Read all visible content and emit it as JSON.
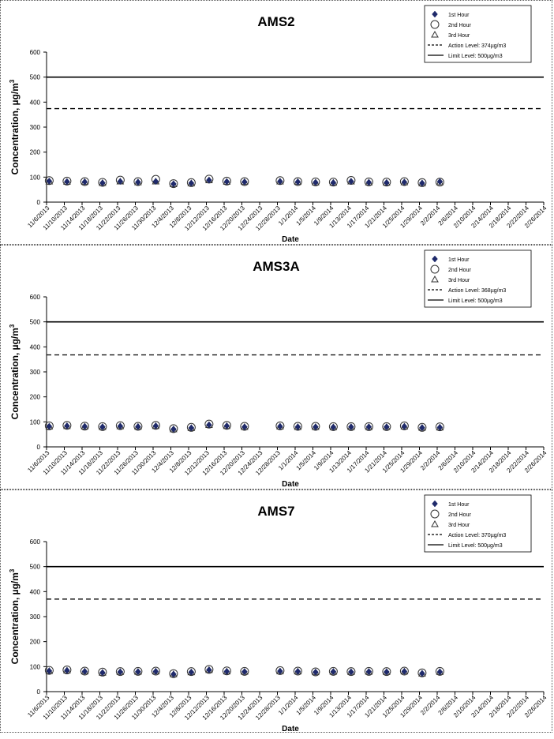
{
  "charts": [
    {
      "type": "scatter",
      "title": "AMS2",
      "ylabel": "Concentration,  µg/m",
      "ylabel_sup": "3",
      "xlabel": "Date",
      "ylim": [
        0,
        600
      ],
      "yticks": [
        0,
        100,
        200,
        300,
        400,
        500,
        600
      ],
      "x": [
        "11/6/2013",
        "11/10/2013",
        "11/14/2013",
        "11/18/2013",
        "11/22/2013",
        "11/26/2013",
        "11/30/2013",
        "12/4/2013",
        "12/8/2013",
        "12/12/2013",
        "12/16/2013",
        "12/20/2013",
        "12/24/2013",
        "12/28/2013",
        "1/1/2014",
        "1/5/2014",
        "1/9/2014",
        "1/13/2014",
        "1/17/2014",
        "1/21/2014",
        "1/25/2014",
        "1/29/2014",
        "2/2/2014",
        "2/6/2014",
        "2/10/2014",
        "2/14/2014",
        "2/18/2014",
        "2/22/2014",
        "2/26/2014"
      ],
      "series": [
        {
          "name": "1st Hour",
          "marker": "diamond",
          "values": [
            84,
            82,
            81,
            77,
            83,
            80,
            83,
            73,
            76,
            88,
            82,
            81,
            83,
            81,
            79,
            78,
            83,
            79,
            78,
            80,
            76,
            82
          ]
        },
        {
          "name": "2nd Hour",
          "marker": "circle",
          "values": [
            86,
            84,
            82,
            79,
            88,
            82,
            91,
            74,
            78,
            92,
            84,
            82,
            86,
            82,
            81,
            80,
            87,
            81,
            80,
            82,
            78,
            80
          ]
        },
        {
          "name": "3rd Hour",
          "marker": "triangle",
          "values": [
            82,
            81,
            80,
            76,
            82,
            79,
            82,
            71,
            75,
            87,
            81,
            80,
            82,
            80,
            78,
            77,
            82,
            78,
            77,
            79,
            75,
            79
          ]
        }
      ],
      "lines": [
        {
          "name": "Action Level: 374µg/m3",
          "value": 374,
          "style": "dashed"
        },
        {
          "name": "Limit Level: 500µg/m3",
          "value": 500,
          "style": "solid"
        }
      ],
      "legend": "top-right"
    },
    {
      "type": "scatter",
      "title": "AMS3A",
      "ylabel": "Concentration,  µg/m",
      "ylabel_sup": "3",
      "xlabel": "Date",
      "ylim": [
        0,
        600
      ],
      "yticks": [
        0,
        100,
        200,
        300,
        400,
        500,
        600
      ],
      "x": [
        "11/6/2013",
        "11/10/2013",
        "11/14/2013",
        "11/18/2013",
        "11/22/2013",
        "11/26/2013",
        "11/30/2013",
        "12/4/2013",
        "12/8/2013",
        "12/12/2013",
        "12/16/2013",
        "12/20/2013",
        "12/24/2013",
        "12/28/2013",
        "1/1/2014",
        "1/5/2014",
        "1/9/2014",
        "1/13/2014",
        "1/17/2014",
        "1/21/2014",
        "1/25/2014",
        "1/29/2014",
        "2/2/2014",
        "2/6/2014",
        "2/10/2014",
        "2/14/2014",
        "2/18/2014",
        "2/22/2014",
        "2/26/2014"
      ],
      "series": [
        {
          "name": "1st Hour",
          "marker": "diamond",
          "values": [
            82,
            84,
            82,
            80,
            83,
            81,
            84,
            71,
            76,
            88,
            84,
            80,
            82,
            80,
            80,
            79,
            80,
            80,
            80,
            82,
            77,
            78
          ]
        },
        {
          "name": "2nd Hour",
          "marker": "circle",
          "values": [
            84,
            86,
            83,
            81,
            85,
            82,
            86,
            73,
            78,
            91,
            86,
            82,
            84,
            82,
            82,
            81,
            81,
            81,
            81,
            84,
            78,
            80
          ]
        },
        {
          "name": "3rd Hour",
          "marker": "triangle",
          "values": [
            81,
            83,
            81,
            79,
            82,
            80,
            83,
            70,
            75,
            87,
            83,
            79,
            81,
            79,
            79,
            78,
            79,
            79,
            79,
            81,
            76,
            77
          ]
        }
      ],
      "lines": [
        {
          "name": "Action Level: 368µg/m3",
          "value": 368,
          "style": "dashed"
        },
        {
          "name": "Limit Level: 500µg/m3",
          "value": 500,
          "style": "solid"
        }
      ],
      "legend": "top-right"
    },
    {
      "type": "scatter",
      "title": "AMS7",
      "ylabel": "Concentration,  µg/m",
      "ylabel_sup": "3",
      "xlabel": "Date",
      "ylim": [
        0,
        600
      ],
      "yticks": [
        0,
        100,
        200,
        300,
        400,
        500,
        600
      ],
      "x": [
        "11/6/2013",
        "11/10/2013",
        "11/14/2013",
        "11/18/2013",
        "11/22/2013",
        "11/26/2013",
        "11/30/2013",
        "12/4/2013",
        "12/8/2013",
        "12/12/2013",
        "12/16/2013",
        "12/20/2013",
        "12/24/2013",
        "12/28/2013",
        "1/1/2014",
        "1/5/2014",
        "1/9/2014",
        "1/13/2014",
        "1/17/2014",
        "1/21/2014",
        "1/25/2014",
        "1/29/2014",
        "2/2/2014",
        "2/6/2014",
        "2/10/2014",
        "2/14/2014",
        "2/18/2014",
        "2/22/2014",
        "2/26/2014"
      ],
      "series": [
        {
          "name": "1st Hour",
          "marker": "diamond",
          "values": [
            83,
            85,
            81,
            76,
            79,
            80,
            81,
            70,
            78,
            87,
            81,
            80,
            82,
            81,
            78,
            80,
            79,
            80,
            79,
            81,
            73,
            79
          ]
        },
        {
          "name": "2nd Hour",
          "marker": "circle",
          "values": [
            85,
            87,
            82,
            78,
            80,
            81,
            82,
            72,
            80,
            89,
            83,
            81,
            84,
            82,
            79,
            81,
            80,
            81,
            80,
            82,
            75,
            81
          ]
        },
        {
          "name": "3rd Hour",
          "marker": "triangle",
          "values": [
            82,
            84,
            80,
            75,
            78,
            79,
            80,
            69,
            77,
            86,
            80,
            79,
            81,
            80,
            77,
            79,
            78,
            79,
            78,
            80,
            72,
            78
          ]
        }
      ],
      "lines": [
        {
          "name": "Action Level: 370µg/m3",
          "value": 370,
          "style": "dashed"
        },
        {
          "name": "Limit Level: 500µg/m3",
          "value": 500,
          "style": "solid"
        }
      ],
      "legend": "top-right"
    }
  ],
  "colors": {
    "diamond": "#1f2a6b",
    "circle_stroke": "#333333",
    "triangle_stroke": "#333333",
    "line": "#000000"
  }
}
